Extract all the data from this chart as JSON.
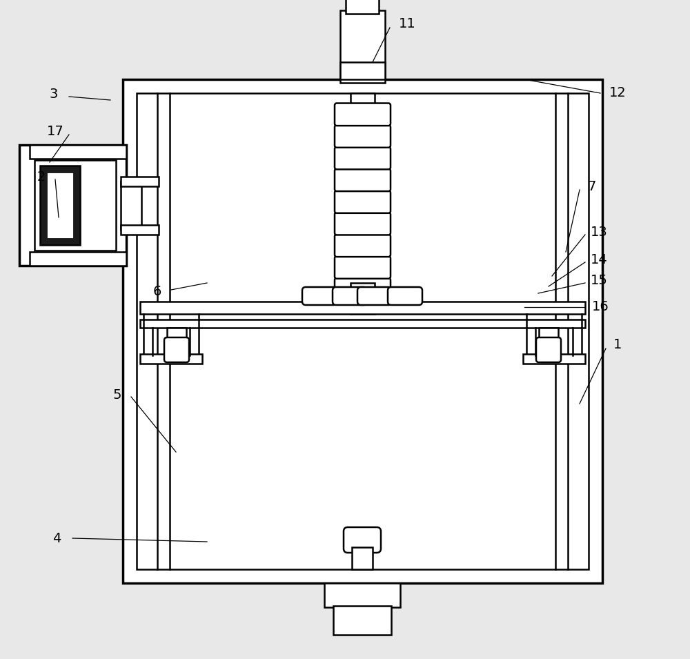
{
  "bg_color": "#e8e8e8",
  "line_color": "#000000",
  "fill_white": "#ffffff",
  "fill_black": "#1a1a1a",
  "lw": 1.8,
  "lw_thick": 2.5,
  "lw_thin": 1.2,
  "font_size": 14,
  "fig_w": 10.0,
  "fig_h": 9.55
}
